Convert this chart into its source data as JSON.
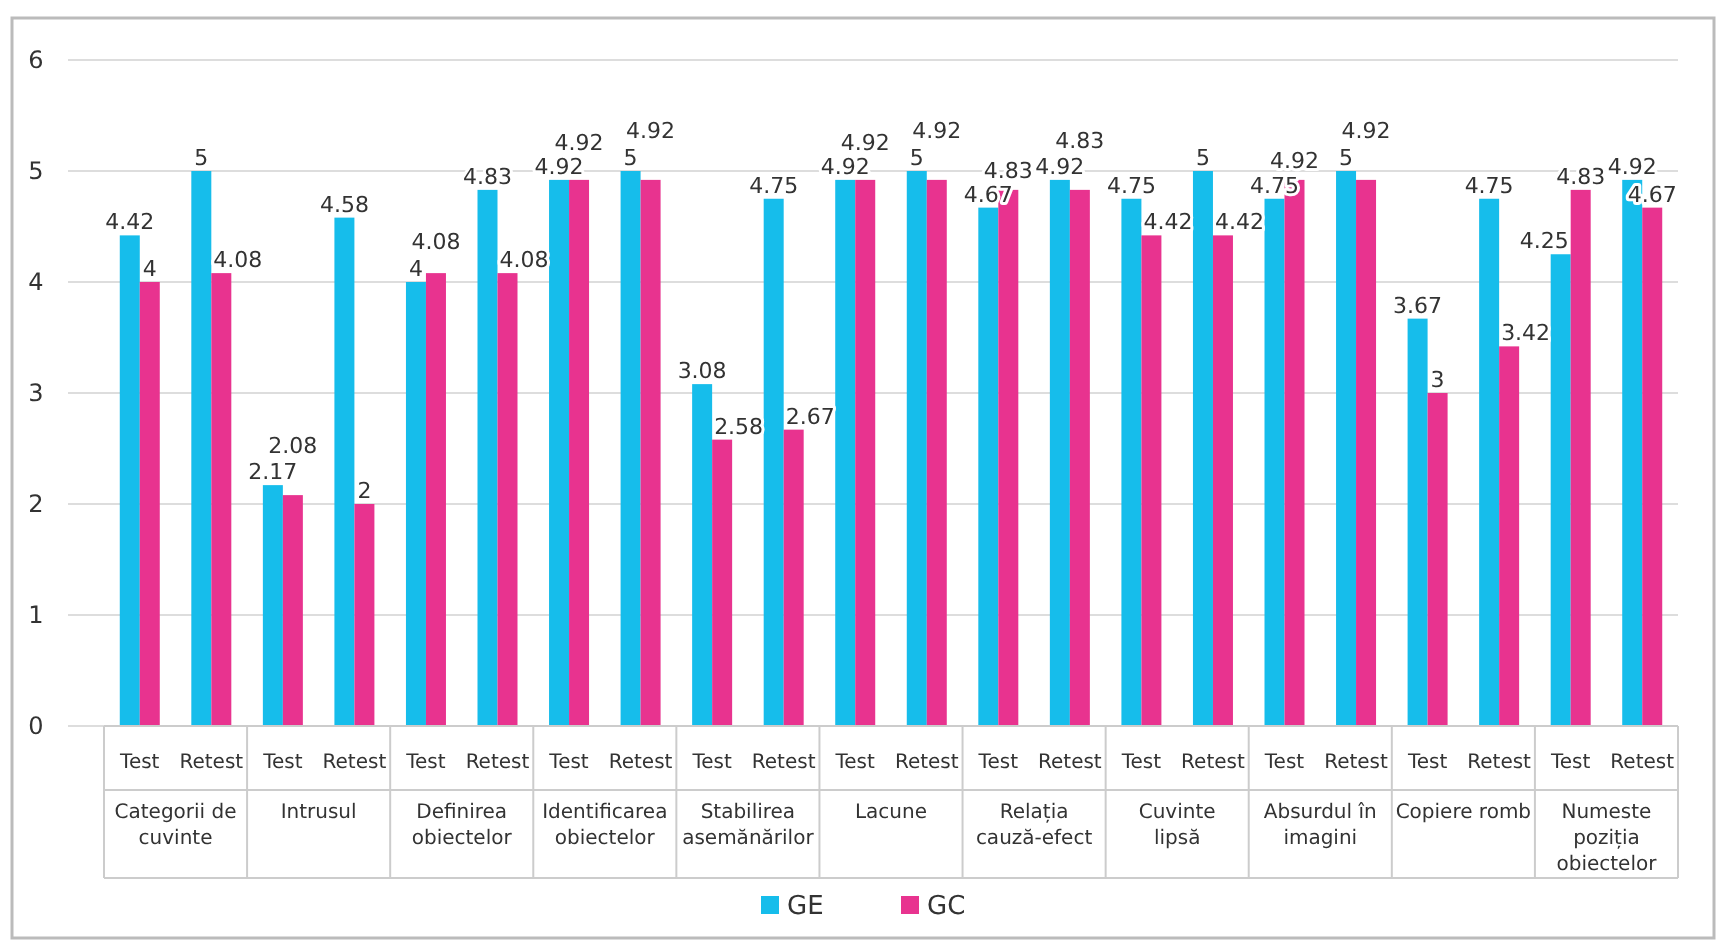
{
  "chart_data": {
    "type": "bar",
    "categories": [
      "Test",
      "Retest",
      "Test",
      "Retest",
      "Test",
      "Retest",
      "Test",
      "Retest",
      "Test",
      "Retest",
      "Test",
      "Retest",
      "Test",
      "Retest",
      "Test",
      "Retest",
      "Test",
      "Retest",
      "Test",
      "Retest",
      "Test",
      "Retest"
    ],
    "annotations": [
      "Categorii de cuvinte",
      "Intrusul",
      "Definirea obiectelor",
      "Identificarea obiectelor",
      "Stabilirea asemănărilor",
      "Lacune",
      "Relația cauză-efect",
      "Cuvinte lipsă",
      "Absurdul în imagini",
      "Copiere romb",
      "Numeste poziția obiectelor"
    ],
    "series": [
      {
        "name": "GE",
        "color": "#16bdeb",
        "values": [
          4.42,
          5,
          2.17,
          4.58,
          4,
          4.83,
          4.92,
          5,
          3.08,
          4.75,
          4.92,
          5,
          4.67,
          4.92,
          4.75,
          5,
          4.75,
          5,
          3.67,
          4.75,
          4.25,
          4.92
        ]
      },
      {
        "name": "GC",
        "color": "#e8338f",
        "values": [
          4,
          4.08,
          2.08,
          2,
          4.08,
          4.08,
          4.92,
          4.92,
          2.58,
          2.67,
          4.92,
          4.92,
          4.83,
          4.83,
          4.42,
          4.42,
          4.92,
          4.92,
          3,
          3.42,
          4.83,
          4.67
        ]
      }
    ],
    "ylim": [
      0,
      6
    ],
    "yticks": [
      0,
      1,
      2,
      3,
      4,
      5,
      6
    ],
    "grid": "y",
    "legend": "bottom",
    "data_labels": true
  }
}
